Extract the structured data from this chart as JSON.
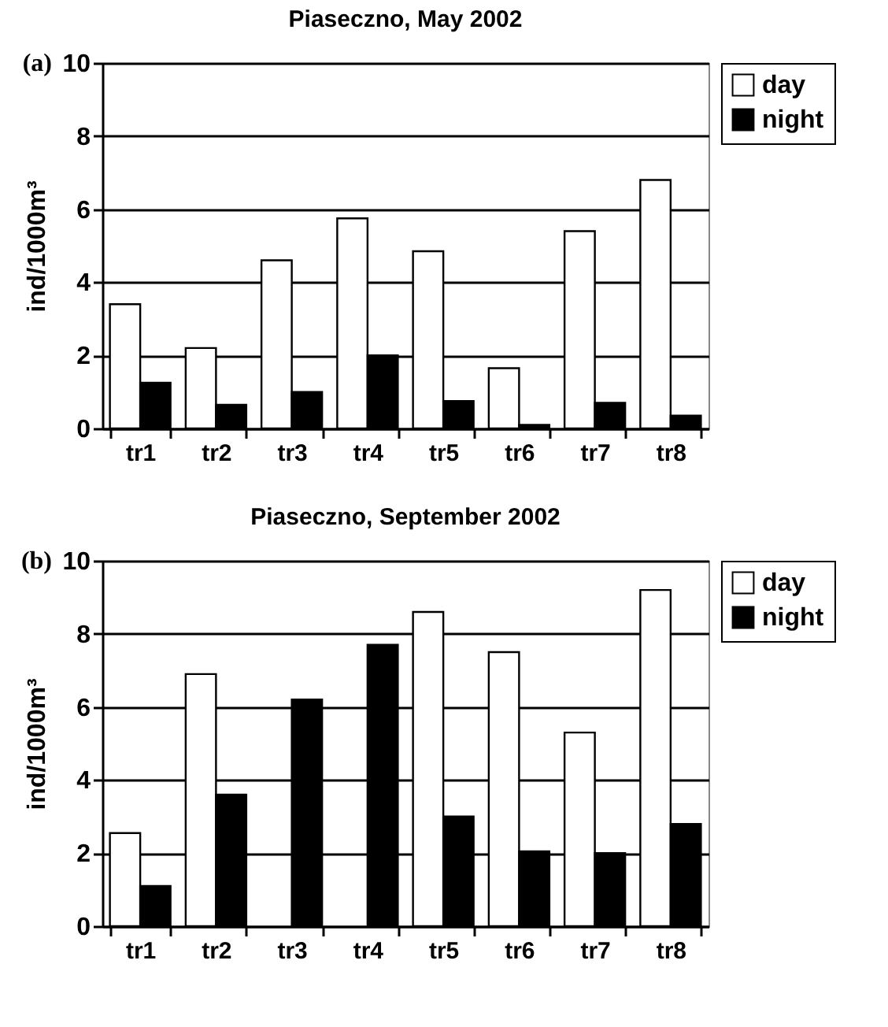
{
  "chart_data": [
    {
      "type": "bar",
      "title": "Piaseczno, May 2002",
      "ylabel": "ind/1000m³",
      "annotations": [
        "(a)"
      ],
      "categories": [
        "tr1",
        "tr2",
        "tr3",
        "tr4",
        "tr5",
        "tr6",
        "tr7",
        "tr8"
      ],
      "series": [
        {
          "name": "day",
          "color": "#ffffff",
          "values": [
            3.4,
            2.2,
            4.6,
            5.75,
            4.85,
            1.65,
            5.4,
            6.8
          ]
        },
        {
          "name": "night",
          "color": "#000000",
          "values": [
            1.25,
            0.65,
            1.0,
            2.0,
            0.75,
            0.1,
            0.7,
            0.35
          ]
        }
      ],
      "ylim": [
        0,
        10
      ],
      "yticks": [
        0,
        2,
        4,
        6,
        8,
        10
      ],
      "grid": "y",
      "legend": "right"
    },
    {
      "type": "bar",
      "title": "Piaseczno, September 2002",
      "ylabel": "ind/1000m³",
      "annotations": [
        "(b)"
      ],
      "categories": [
        "tr1",
        "tr2",
        "tr3",
        "tr4",
        "tr5",
        "tr6",
        "tr7",
        "tr8"
      ],
      "series": [
        {
          "name": "day",
          "color": "#ffffff",
          "values": [
            2.55,
            6.9,
            null,
            null,
            8.6,
            7.5,
            5.3,
            9.2
          ]
        },
        {
          "name": "night",
          "color": "#000000",
          "values": [
            1.1,
            3.6,
            6.2,
            7.7,
            3.0,
            2.05,
            2.0,
            2.8
          ]
        }
      ],
      "ylim": [
        0,
        10
      ],
      "yticks": [
        0,
        2,
        4,
        6,
        8,
        10
      ],
      "grid": "y",
      "legend": "right"
    }
  ]
}
